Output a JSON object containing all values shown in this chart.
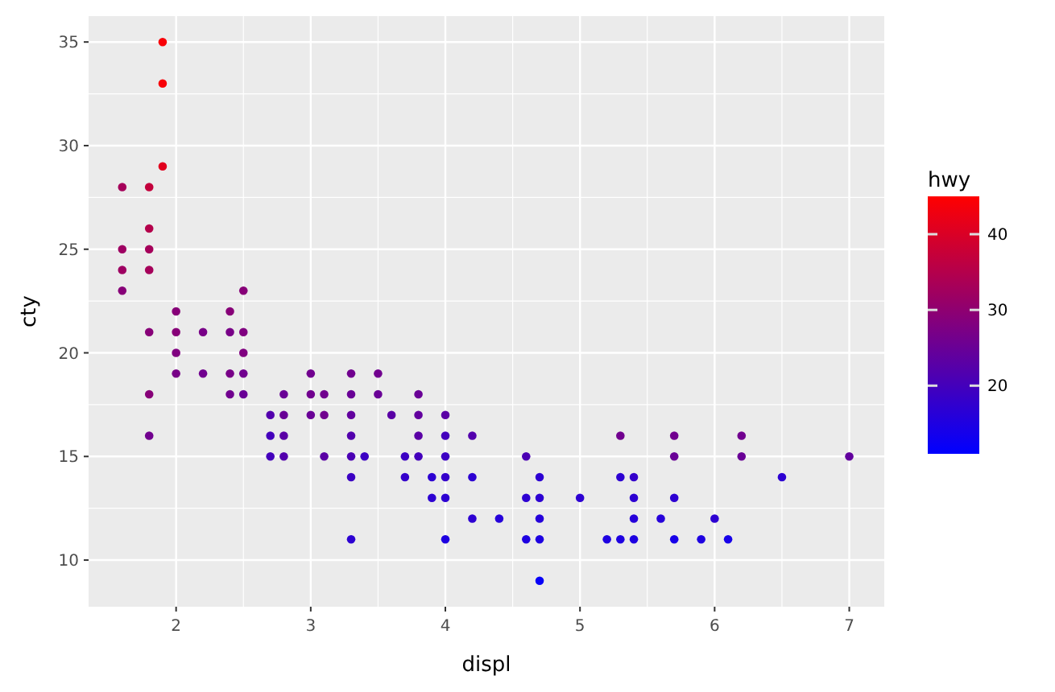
{
  "chart_data": {
    "type": "scatter",
    "xlabel": "displ",
    "ylabel": "cty",
    "clabel": "hwy",
    "x": [
      1.6,
      1.6,
      1.6,
      1.6,
      1.8,
      1.8,
      1.8,
      1.8,
      1.8,
      1.8,
      1.8,
      1.9,
      1.9,
      1.9,
      2.0,
      2.0,
      2.0,
      2.0,
      2.2,
      2.2,
      2.4,
      2.4,
      2.4,
      2.4,
      2.5,
      2.5,
      2.5,
      2.5,
      2.5,
      2.7,
      2.7,
      2.7,
      2.8,
      2.8,
      2.8,
      2.8,
      3.0,
      3.0,
      3.0,
      3.1,
      3.1,
      3.1,
      3.3,
      3.3,
      3.3,
      3.3,
      3.3,
      3.3,
      3.3,
      3.4,
      3.5,
      3.5,
      3.6,
      3.7,
      3.7,
      3.8,
      3.8,
      3.8,
      3.8,
      3.9,
      3.9,
      4.0,
      4.0,
      4.0,
      4.0,
      4.0,
      4.0,
      4.2,
      4.2,
      4.2,
      4.4,
      4.6,
      4.6,
      4.6,
      4.7,
      4.7,
      4.7,
      4.7,
      4.7,
      5.0,
      5.2,
      5.3,
      5.3,
      5.3,
      5.4,
      5.4,
      5.4,
      5.4,
      5.6,
      5.7,
      5.7,
      5.7,
      5.7,
      5.9,
      6.0,
      6.1,
      6.2,
      6.2,
      6.5,
      7.0
    ],
    "values": [
      28,
      25,
      24,
      23,
      28,
      26,
      25,
      24,
      21,
      18,
      16,
      35,
      33,
      29,
      22,
      21,
      20,
      19,
      21,
      19,
      22,
      21,
      19,
      18,
      23,
      21,
      20,
      19,
      18,
      17,
      16,
      15,
      18,
      17,
      16,
      15,
      19,
      18,
      17,
      18,
      17,
      15,
      19,
      18,
      17,
      16,
      15,
      14,
      11,
      15,
      19,
      18,
      17,
      15,
      14,
      18,
      17,
      16,
      15,
      14,
      13,
      17,
      16,
      15,
      14,
      13,
      11,
      16,
      14,
      12,
      12,
      15,
      13,
      11,
      14,
      13,
      12,
      11,
      9,
      13,
      11,
      16,
      14,
      11,
      14,
      13,
      12,
      11,
      12,
      16,
      15,
      13,
      11,
      11,
      12,
      11,
      16,
      15,
      14,
      15
    ],
    "cvalues": [
      33,
      32,
      32,
      29,
      37,
      35,
      33,
      33,
      29,
      29,
      26,
      44,
      44,
      41,
      29,
      29,
      28,
      27,
      27,
      26,
      29,
      27,
      27,
      26,
      29,
      28,
      28,
      26,
      25,
      22,
      20,
      20,
      25,
      25,
      23,
      22,
      26,
      26,
      25,
      26,
      26,
      23,
      26,
      25,
      24,
      22,
      21,
      19,
      17,
      19,
      26,
      25,
      23,
      19,
      18,
      25,
      24,
      23,
      20,
      17,
      17,
      23,
      20,
      19,
      18,
      17,
      15,
      22,
      17,
      17,
      16,
      21,
      17,
      15,
      17,
      17,
      16,
      15,
      12,
      17,
      15,
      26,
      17,
      15,
      18,
      17,
      16,
      15,
      16,
      26,
      25,
      17,
      14,
      15,
      17,
      14,
      26,
      25,
      17,
      24
    ],
    "xlim": [
      1.35,
      7.26
    ],
    "ylim": [
      7.75,
      36.25
    ],
    "xticks": [
      2,
      3,
      4,
      5,
      6,
      7
    ],
    "yticks": [
      10,
      15,
      20,
      25,
      30,
      35
    ],
    "clim": [
      11,
      45
    ],
    "cticks": [
      20,
      30,
      40
    ],
    "grid": true,
    "marker": "circle"
  }
}
